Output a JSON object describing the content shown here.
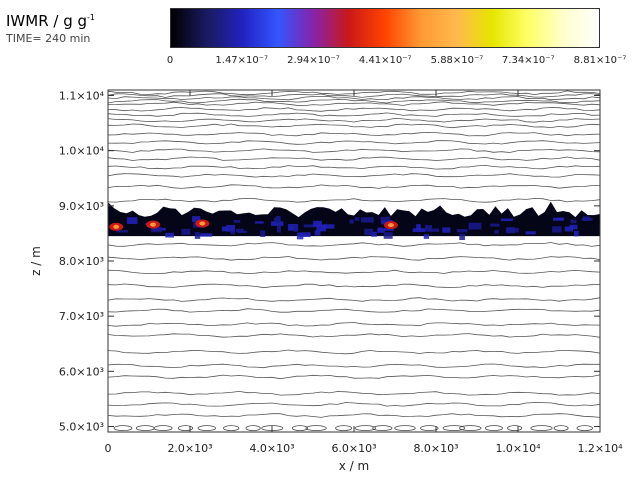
{
  "header": {
    "title": "IWMR / g g",
    "title_sup": "-1",
    "time_label": "TIME= 240 min"
  },
  "colorbar": {
    "stops": [
      "#000000",
      "#1a1a60",
      "#2222c0",
      "#3355ff",
      "#8822aa",
      "#cc1818",
      "#ff4400",
      "#ff9933",
      "#ffb84d",
      "#e6e600",
      "#ffff66",
      "#ffffcc",
      "#ffffff"
    ],
    "ticks": [
      {
        "value": 0,
        "label": "0"
      },
      {
        "value": 1.47e-07,
        "label": "1.47×10⁻⁷"
      },
      {
        "value": 2.94e-07,
        "label": "2.94×10⁻⁷"
      },
      {
        "value": 4.41e-07,
        "label": "4.41×10⁻⁷"
      },
      {
        "value": 5.88e-07,
        "label": "5.88×10⁻⁷"
      },
      {
        "value": 7.34e-07,
        "label": "7.34×10⁻⁷"
      },
      {
        "value": 8.81e-07,
        "label": "8.81×10⁻⁷"
      }
    ],
    "max": 8.81e-07
  },
  "chart_data": {
    "type": "heatmap",
    "title": "IWMR / g g⁻¹",
    "xlabel": "x / m",
    "ylabel": "z / m",
    "xlim": [
      0,
      12000
    ],
    "ylim": [
      4900,
      11100
    ],
    "x_ticks": [
      {
        "value": 0,
        "label": "0"
      },
      {
        "value": 2000,
        "label": "2.0×10³"
      },
      {
        "value": 4000,
        "label": "4.0×10³"
      },
      {
        "value": 6000,
        "label": "6.0×10³"
      },
      {
        "value": 8000,
        "label": "8.0×10³"
      },
      {
        "value": 10000,
        "label": "1.0×10⁴"
      },
      {
        "value": 12000,
        "label": "1.2×10⁴"
      }
    ],
    "y_ticks": [
      {
        "value": 5000,
        "label": "5.0×10³"
      },
      {
        "value": 6000,
        "label": "6.0×10³"
      },
      {
        "value": 7000,
        "label": "7.0×10³"
      },
      {
        "value": 8000,
        "label": "8.0×10³"
      },
      {
        "value": 9000,
        "label": "9.0×10³"
      },
      {
        "value": 10000,
        "label": "1.0×10⁴"
      },
      {
        "value": 11000,
        "label": "1.1×10⁴"
      }
    ],
    "cloud_layer": {
      "z_bottom": 8450,
      "z_top": 9050,
      "max_iwmr": 8.81e-07
    },
    "hot_spots": [
      {
        "x": 200,
        "z": 8620,
        "iwmr": 5e-07
      },
      {
        "x": 1100,
        "z": 8660,
        "iwmr": 3.8e-07
      },
      {
        "x": 2300,
        "z": 8680,
        "iwmr": 6e-07
      },
      {
        "x": 6900,
        "z": 8650,
        "iwmr": 3.5e-07
      }
    ],
    "contour_levels_z": [
      5200,
      5400,
      5600,
      5900,
      6100,
      6350,
      6650,
      6850,
      7100,
      7300,
      7550,
      7800,
      8050,
      8300,
      9100,
      9350,
      9550,
      9700,
      9850,
      10000,
      10150,
      10300,
      10450,
      10550,
      10650,
      10750,
      10850,
      10900,
      10950,
      11000,
      11050
    ]
  }
}
